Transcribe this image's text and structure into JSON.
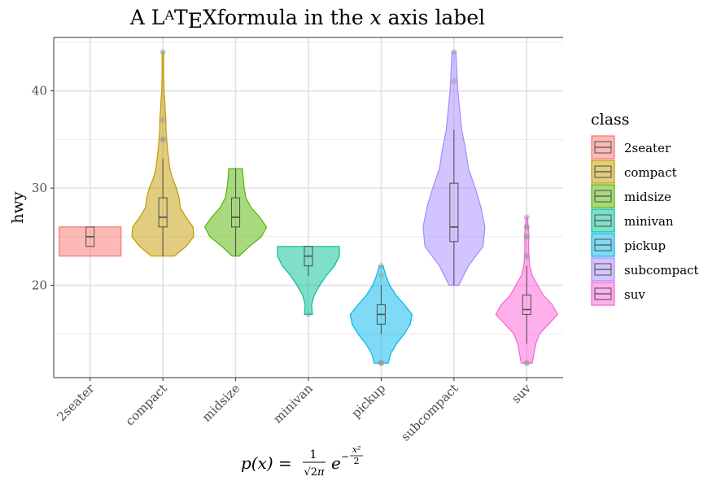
{
  "chart_data": {
    "type": "violin",
    "title": "A LATEXformula in the x axis label",
    "xlabel": "p(x) = 1/√(2π) e^(−x²/2)",
    "ylabel": "hwy",
    "categories": [
      "2seater",
      "compact",
      "midsize",
      "minivan",
      "pickup",
      "subcompact",
      "suv"
    ],
    "ylim": [
      10.5,
      45.5
    ],
    "yticks": [
      20,
      30,
      40
    ],
    "grid": true,
    "legend": {
      "title": "class",
      "position": "right"
    },
    "colors": [
      "#F8766D",
      "#C49A00",
      "#53B400",
      "#00C094",
      "#00B6EB",
      "#A58AFF",
      "#FB61D7"
    ],
    "series": [
      {
        "name": "2seater",
        "min": 23,
        "max": 26,
        "box": {
          "lower": 24,
          "q1": 24,
          "median": 25,
          "q3": 26,
          "upper": 26
        },
        "outliers": [],
        "density": [
          [
            23,
            1
          ],
          [
            24,
            1
          ],
          [
            25,
            1
          ],
          [
            26,
            1
          ]
        ]
      },
      {
        "name": "compact",
        "min": 23,
        "max": 44,
        "box": {
          "lower": 23,
          "q1": 26,
          "median": 27,
          "q3": 29,
          "upper": 33
        },
        "outliers": [
          35,
          35,
          37,
          44
        ],
        "density": [
          [
            23,
            0.3
          ],
          [
            24,
            0.6
          ],
          [
            25,
            0.8
          ],
          [
            26,
            0.78
          ],
          [
            27,
            0.6
          ],
          [
            28,
            0.45
          ],
          [
            29,
            0.42
          ],
          [
            30,
            0.35
          ],
          [
            31,
            0.25
          ],
          [
            32,
            0.18
          ],
          [
            33,
            0.15
          ],
          [
            34,
            0.12
          ],
          [
            35,
            0.1
          ],
          [
            36,
            0.08
          ],
          [
            37,
            0.08
          ],
          [
            38,
            0.06
          ],
          [
            39,
            0.05
          ],
          [
            40,
            0.03
          ],
          [
            42,
            0.02
          ],
          [
            44,
            0.02
          ]
        ]
      },
      {
        "name": "midsize",
        "min": 23,
        "max": 32,
        "box": {
          "lower": 23,
          "q1": 26,
          "median": 27,
          "q3": 29,
          "upper": 32
        },
        "outliers": [],
        "density": [
          [
            23,
            0.1
          ],
          [
            24,
            0.4
          ],
          [
            25,
            0.75
          ],
          [
            26,
            0.9
          ],
          [
            27,
            0.7
          ],
          [
            28,
            0.45
          ],
          [
            29,
            0.3
          ],
          [
            30,
            0.25
          ],
          [
            31,
            0.22
          ],
          [
            32,
            0.2
          ]
        ]
      },
      {
        "name": "minivan",
        "min": 17,
        "max": 24,
        "box": {
          "lower": 21,
          "q1": 22,
          "median": 23,
          "q3": 24,
          "upper": 24
        },
        "outliers": [
          17
        ],
        "density": [
          [
            17,
            0.12
          ],
          [
            18,
            0.1
          ],
          [
            19,
            0.18
          ],
          [
            20,
            0.35
          ],
          [
            21,
            0.55
          ],
          [
            22,
            0.8
          ],
          [
            23,
            0.95
          ],
          [
            24,
            0.95
          ]
        ]
      },
      {
        "name": "pickup",
        "min": 12,
        "max": 22,
        "box": {
          "lower": 15,
          "q1": 16,
          "median": 17,
          "q3": 18,
          "upper": 20
        },
        "outliers": [
          12,
          12,
          12,
          21,
          22
        ],
        "density": [
          [
            12,
            0.18
          ],
          [
            13,
            0.25
          ],
          [
            14,
            0.4
          ],
          [
            15,
            0.6
          ],
          [
            16,
            0.75
          ],
          [
            17,
            0.8
          ],
          [
            18,
            0.6
          ],
          [
            19,
            0.38
          ],
          [
            20,
            0.22
          ],
          [
            21,
            0.12
          ],
          [
            22,
            0.05
          ]
        ]
      },
      {
        "name": "subcompact",
        "min": 20,
        "max": 44,
        "box": {
          "lower": 20,
          "q1": 24.5,
          "median": 26,
          "q3": 30.5,
          "upper": 36
        },
        "outliers": [
          41,
          44
        ],
        "density": [
          [
            20,
            0.05
          ],
          [
            22,
            0.15
          ],
          [
            24,
            0.3
          ],
          [
            26,
            0.32
          ],
          [
            28,
            0.28
          ],
          [
            30,
            0.22
          ],
          [
            32,
            0.15
          ],
          [
            34,
            0.12
          ],
          [
            36,
            0.08
          ],
          [
            38,
            0.06
          ],
          [
            40,
            0.04
          ],
          [
            42,
            0.03
          ],
          [
            44,
            0.02
          ]
        ]
      },
      {
        "name": "suv",
        "min": 12,
        "max": 27,
        "box": {
          "lower": 14,
          "q1": 17,
          "median": 17.5,
          "q3": 19,
          "upper": 22
        },
        "outliers": [
          12,
          12,
          23,
          23,
          25,
          25,
          26,
          26,
          27
        ],
        "density": [
          [
            12,
            0.15
          ],
          [
            13,
            0.2
          ],
          [
            14,
            0.25
          ],
          [
            15,
            0.35
          ],
          [
            16,
            0.6
          ],
          [
            17,
            0.85
          ],
          [
            18,
            0.7
          ],
          [
            19,
            0.45
          ],
          [
            20,
            0.3
          ],
          [
            21,
            0.15
          ],
          [
            22,
            0.08
          ],
          [
            23,
            0.06
          ],
          [
            24,
            0.05
          ],
          [
            25,
            0.06
          ],
          [
            26,
            0.04
          ],
          [
            27,
            0.02
          ]
        ]
      }
    ]
  }
}
